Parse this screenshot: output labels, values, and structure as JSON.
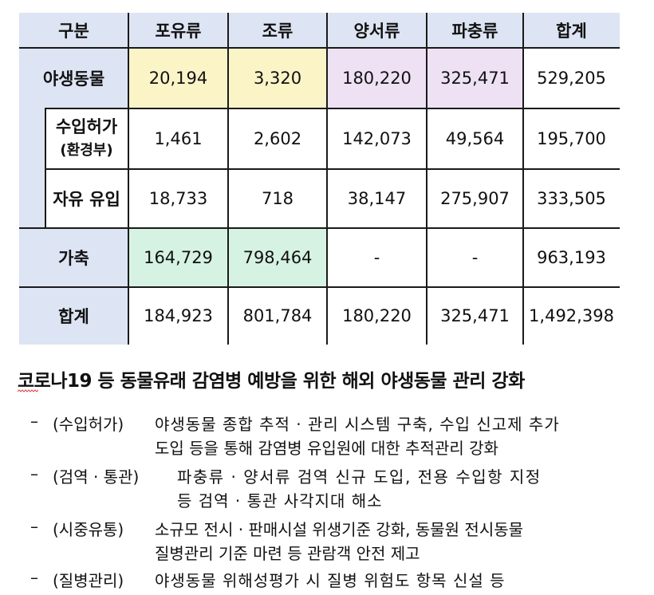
{
  "table": {
    "headers": [
      "구분",
      "포유류",
      "조류",
      "양서류",
      "파충류",
      "합계"
    ],
    "rows": [
      {
        "label": "야생동물",
        "values": [
          "20,194",
          "3,320",
          "180,220",
          "325,471",
          "529,205"
        ]
      },
      {
        "label": "수입허가",
        "sublabel": "(환경부)",
        "values": [
          "1,461",
          "2,602",
          "142,073",
          "49,564",
          "195,700"
        ]
      },
      {
        "label": "자유 유입",
        "values": [
          "18,733",
          "718",
          "38,147",
          "275,907",
          "333,505"
        ]
      },
      {
        "label": "가축",
        "values": [
          "164,729",
          "798,464",
          "-",
          "-",
          "963,193"
        ]
      },
      {
        "label": "합계",
        "values": [
          "184,923",
          "801,784",
          "180,220",
          "325,471",
          "1,492,398"
        ]
      }
    ]
  },
  "headline": "코로나19 등 동물유래 감염병 예방을 위한 해외 야생동물 관리 강화",
  "bullets": [
    {
      "dash": "–",
      "tag": "(수입허가)",
      "line1": "야생동물 종합 추적 · 관리 시스템 구축, 수입 신고제 추가",
      "line2": "도입 등을 통해 감염병 유입원에 대한 추적관리 강화"
    },
    {
      "dash": "–",
      "tag": "(검역 · 통관)",
      "line1": "파충류 · 양서류 검역 신규 도입, 전용 수입항 지정",
      "line2": "등 검역 · 통관 사각지대 해소"
    },
    {
      "dash": "–",
      "tag": "(시중유통)",
      "line1": "소규모 전시 · 판매시설 위생기준 강화, 동물원 전시동물",
      "line2": "질병관리 기준 마련 등 관람객 안전 제고"
    },
    {
      "dash": "–",
      "tag": "(질병관리)",
      "line1": "야생동물 위해성평가 시 질병 위험도 항목 신설 등"
    }
  ]
}
